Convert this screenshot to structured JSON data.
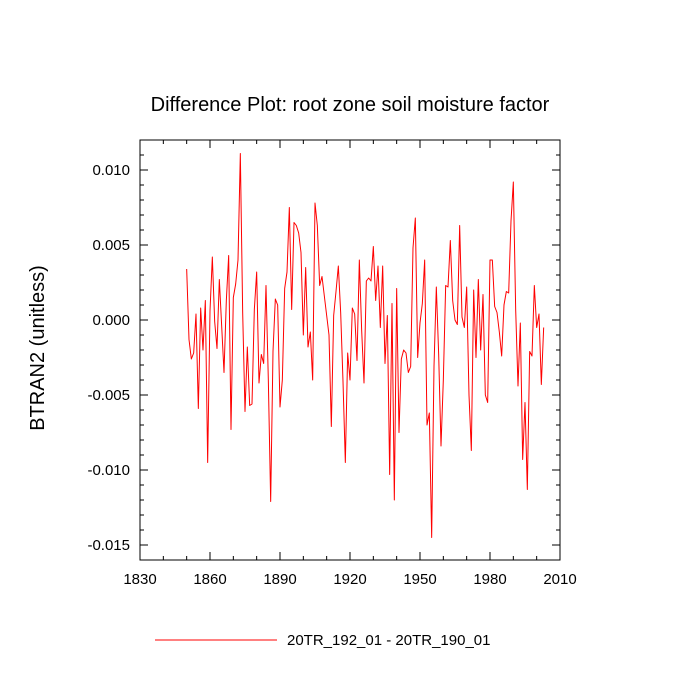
{
  "chart_data": {
    "type": "line",
    "title": "Difference Plot: root zone soil moisture factor",
    "xlabel": "",
    "ylabel": "BTRAN2  (unitless)",
    "xlim": [
      1830,
      2010
    ],
    "ylim": [
      -0.016,
      0.012
    ],
    "xticks": [
      1830,
      1860,
      1890,
      1920,
      1950,
      1980,
      2010
    ],
    "xtick_labels": [
      "1830",
      "1860",
      "1890",
      "1920",
      "1950",
      "1980",
      "2010"
    ],
    "yticks": [
      0.01,
      0.005,
      0.0,
      -0.005,
      -0.01,
      -0.015
    ],
    "ytick_labels": [
      "0.010",
      "0.005",
      "0.000",
      "-0.005",
      "-0.010",
      "-0.015"
    ],
    "grid": false,
    "legend_position": "bottom-center",
    "series": [
      {
        "name": "20TR_192_01 - 20TR_190_01",
        "color": "#ff0000",
        "x_start": 1850,
        "x_step": 1,
        "values": [
          0.0034,
          -0.0013,
          -0.0026,
          -0.0022,
          0.0004,
          -0.0059,
          0.0008,
          -0.002,
          0.0013,
          -0.0095,
          0.0006,
          0.0042,
          -0.0001,
          -0.0019,
          0.0027,
          -0.0004,
          -0.0035,
          0.0013,
          0.0043,
          -0.0073,
          0.0015,
          0.0024,
          0.004,
          0.0111,
          0.0005,
          -0.0061,
          -0.0018,
          -0.0057,
          -0.0056,
          0.0007,
          0.0032,
          -0.0042,
          -0.0023,
          -0.0029,
          0.0023,
          -0.004,
          -0.0121,
          -0.0021,
          0.0014,
          0.001,
          -0.0058,
          -0.004,
          0.0021,
          0.0032,
          0.0075,
          0.0007,
          0.0065,
          0.0063,
          0.0058,
          0.0045,
          -0.001,
          0.0035,
          -0.0018,
          -0.0008,
          -0.004,
          0.0078,
          0.0063,
          0.0023,
          0.0029,
          0.0016,
          0.0003,
          -0.001,
          -0.0071,
          0.0003,
          0.0019,
          0.0036,
          0.0005,
          -0.0041,
          -0.0095,
          -0.0022,
          -0.004,
          0.0008,
          0.0004,
          -0.0027,
          0.004,
          -0.0007,
          -0.0042,
          0.0026,
          0.0028,
          0.0026,
          0.0049,
          0.0013,
          0.0036,
          -0.0005,
          0.0036,
          -0.0029,
          0.0003,
          -0.0103,
          0.0011,
          -0.012,
          0.0021,
          -0.0075,
          -0.0026,
          -0.002,
          -0.0022,
          -0.0035,
          -0.0031,
          0.0048,
          0.0068,
          -0.0025,
          -0.0002,
          0.0011,
          0.004,
          -0.007,
          -0.0062,
          -0.0145,
          -0.0031,
          0.0022,
          -0.0023,
          -0.0084,
          -0.004,
          0.0023,
          0.0022,
          0.0053,
          0.0013,
          0.0,
          -0.0003,
          0.0063,
          0.0002,
          -0.0005,
          0.0022,
          -0.005,
          -0.0087,
          0.002,
          -0.0025,
          0.0027,
          -0.002,
          0.0017,
          -0.005,
          -0.0055,
          0.004,
          0.004,
          0.0009,
          0.0005,
          -0.0008,
          -0.0024,
          0.001,
          0.0019,
          0.0018,
          0.0066,
          0.0092,
          0.0007,
          -0.0044,
          -0.0002,
          -0.0093,
          -0.0055,
          -0.0113,
          -0.0021,
          -0.0024,
          0.0023,
          -0.0005,
          0.0004,
          -0.0043,
          -0.0005
        ]
      }
    ]
  }
}
